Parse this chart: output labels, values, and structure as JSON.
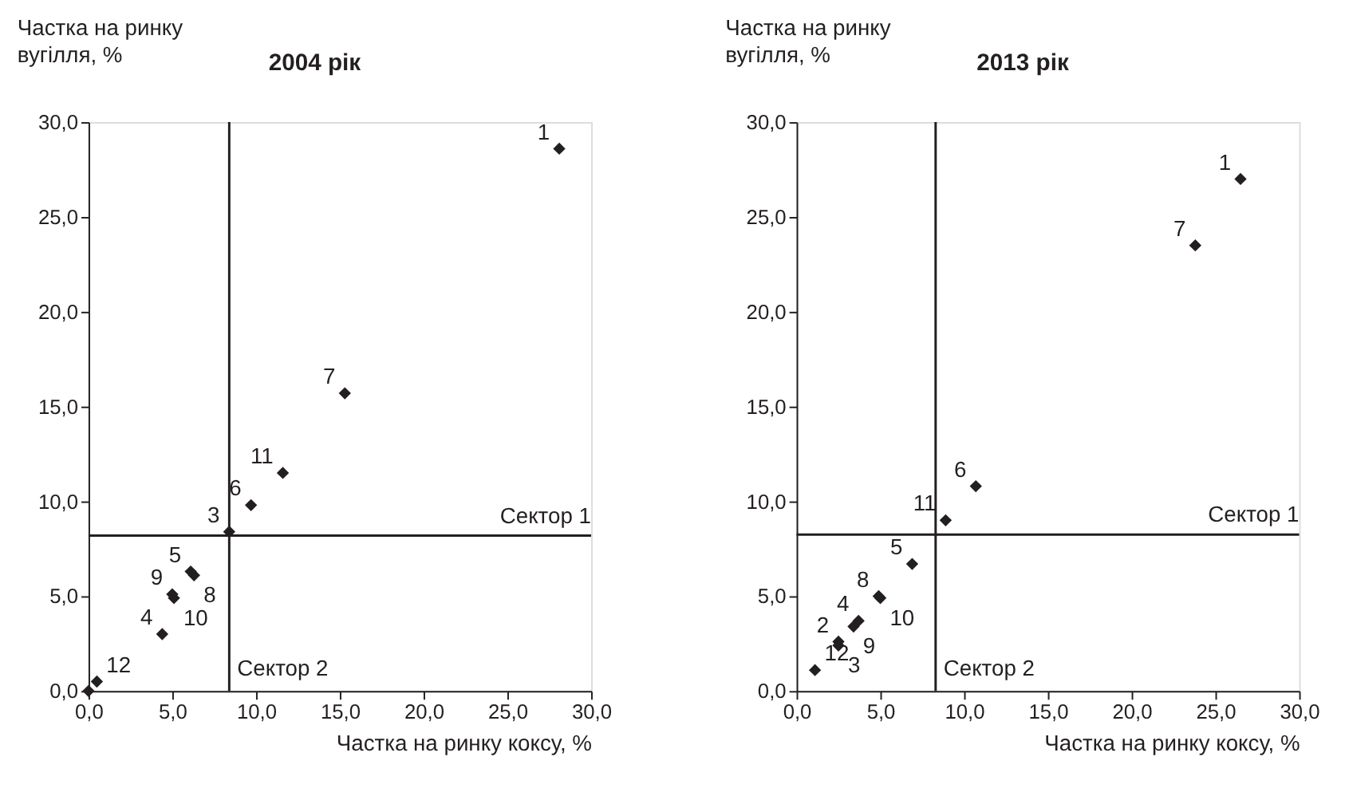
{
  "chart_data": [
    {
      "type": "scatter",
      "title": "2004 рік",
      "ylabel": "Частка на ринку\nвугілля, %",
      "xlabel": "Частка на ринку коксу, %",
      "marker": "diamond",
      "grid": false,
      "xlim": [
        0,
        30
      ],
      "ylim": [
        0,
        30
      ],
      "xticks": [
        {
          "value": 0,
          "label": "0,0"
        },
        {
          "value": 5,
          "label": "5,0"
        },
        {
          "value": 10,
          "label": "10,0"
        },
        {
          "value": 15,
          "label": "15,0"
        },
        {
          "value": 20,
          "label": "20,0"
        },
        {
          "value": 25,
          "label": "25,0"
        },
        {
          "value": 30,
          "label": "30,0"
        }
      ],
      "yticks": [
        {
          "value": 0,
          "label": "0,0"
        },
        {
          "value": 5,
          "label": "5,0"
        },
        {
          "value": 10,
          "label": "10,0"
        },
        {
          "value": 15,
          "label": "15,0"
        },
        {
          "value": 20,
          "label": "20,0"
        },
        {
          "value": 25,
          "label": "25,0"
        },
        {
          "value": 30,
          "label": "30,0"
        }
      ],
      "series": [
        {
          "color": "#231f20",
          "x": [
            28.1,
            0,
            8.4,
            4.4,
            6.1,
            9.7,
            15.3,
            6.3,
            5.0,
            5.1,
            11.6,
            0.5
          ],
          "values": [
            28.6,
            0,
            8.4,
            3.0,
            6.3,
            9.8,
            15.7,
            6.1,
            5.1,
            4.9,
            11.5,
            0.5
          ]
        }
      ],
      "annotations": [
        {
          "text": "1",
          "x": 28.1,
          "y": 28.6
        },
        {
          "text": "3",
          "x": 8.4,
          "y": 8.4
        },
        {
          "text": "4",
          "x": 4.4,
          "y": 3.0
        },
        {
          "text": "5",
          "x": 6.1,
          "y": 6.3
        },
        {
          "text": "6",
          "x": 9.7,
          "y": 9.8
        },
        {
          "text": "7",
          "x": 15.3,
          "y": 15.7
        },
        {
          "text": "8",
          "x": 6.3,
          "y": 6.1
        },
        {
          "text": "9",
          "x": 5.0,
          "y": 5.1
        },
        {
          "text": "10",
          "x": 5.1,
          "y": 4.9
        },
        {
          "text": "11",
          "x": 11.6,
          "y": 11.5
        },
        {
          "text": "12",
          "x": 0.5,
          "y": 0.5
        }
      ],
      "ref_lines": [
        {
          "axis": "y",
          "value": 8.2,
          "label": "Сектор 1",
          "color": "#231f20",
          "line_style": "solid"
        },
        {
          "axis": "x",
          "value": 8.4,
          "label": "Сектор 2",
          "color": "#231f20",
          "line_style": "solid"
        }
      ]
    },
    {
      "type": "scatter",
      "title": "2013 рік",
      "ylabel": "Частка на ринку\nвугілля, %",
      "xlabel": "Частка на ринку коксу, %",
      "marker": "diamond",
      "grid": false,
      "xlim": [
        0,
        30
      ],
      "ylim": [
        0,
        30
      ],
      "xticks": [
        {
          "value": 0,
          "label": "0,0"
        },
        {
          "value": 5,
          "label": "5,0"
        },
        {
          "value": 10,
          "label": "10,0"
        },
        {
          "value": 15,
          "label": "15,0"
        },
        {
          "value": 20,
          "label": "20,0"
        },
        {
          "value": 25,
          "label": "25,0"
        },
        {
          "value": 30,
          "label": "30,0"
        }
      ],
      "yticks": [
        {
          "value": 0,
          "label": "0,0"
        },
        {
          "value": 5,
          "label": "5,0"
        },
        {
          "value": 10,
          "label": "10,0"
        },
        {
          "value": 15,
          "label": "15,0"
        },
        {
          "value": 20,
          "label": "20,0"
        },
        {
          "value": 25,
          "label": "25,0"
        },
        {
          "value": 30,
          "label": "30,0"
        }
      ],
      "series": [
        {
          "color": "#231f20",
          "x": [
            26.5,
            2.5,
            2.5,
            3.7,
            6.9,
            10.7,
            23.8,
            4.9,
            3.4,
            5.0,
            8.9,
            1.1
          ],
          "values": [
            27.0,
            2.6,
            2.4,
            3.7,
            6.7,
            10.8,
            23.5,
            5.0,
            3.4,
            4.9,
            9.0,
            1.1
          ]
        }
      ],
      "annotations": [
        {
          "text": "1",
          "x": 26.5,
          "y": 27.0
        },
        {
          "text": "2",
          "x": 2.5,
          "y": 2.6
        },
        {
          "text": "3",
          "x": 2.5,
          "y": 2.4
        },
        {
          "text": "4",
          "x": 3.7,
          "y": 3.7
        },
        {
          "text": "5",
          "x": 6.9,
          "y": 6.7
        },
        {
          "text": "6",
          "x": 10.7,
          "y": 10.8
        },
        {
          "text": "7",
          "x": 23.8,
          "y": 23.5
        },
        {
          "text": "8",
          "x": 4.9,
          "y": 5.0
        },
        {
          "text": "9",
          "x": 3.4,
          "y": 3.4
        },
        {
          "text": "10",
          "x": 5.0,
          "y": 4.9
        },
        {
          "text": "11",
          "x": 8.9,
          "y": 9.0
        },
        {
          "text": "12",
          "x": 1.1,
          "y": 1.1
        }
      ],
      "ref_lines": [
        {
          "axis": "y",
          "value": 8.25,
          "label": "Сектор 1",
          "color": "#231f20",
          "line_style": "solid"
        },
        {
          "axis": "x",
          "value": 8.3,
          "label": "Сектор 2",
          "color": "#231f20",
          "line_style": "solid"
        }
      ]
    }
  ]
}
